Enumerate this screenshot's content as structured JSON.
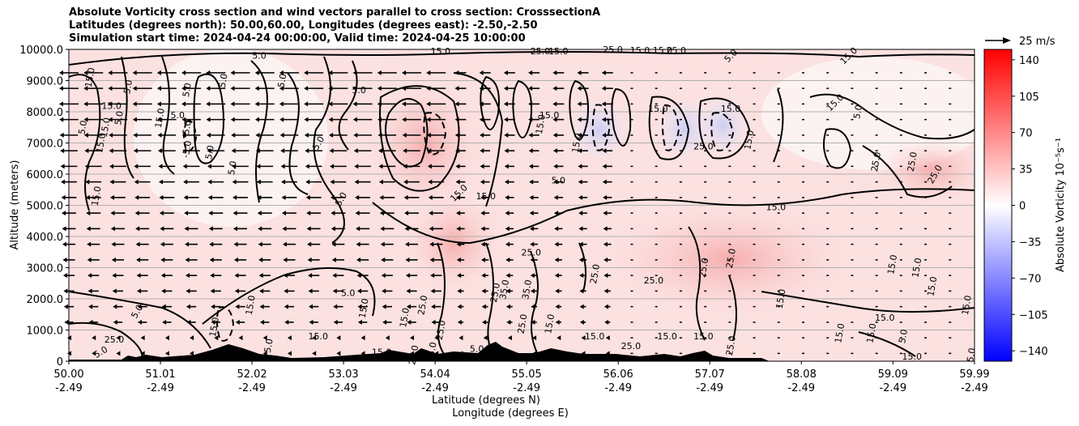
{
  "chart_data": {
    "type": "heatmap",
    "title": [
      "Absolute Vorticity cross section and wind vectors parallel to cross section: CrosssectionA",
      "Latitudes (degrees north): 50.00,60.00, Longitudes (degrees east): -2.50,-2.50",
      "Simulation start time: 2024-04-24 00:00:00, Valid time: 2024-04-25 10:00:00"
    ],
    "xlabel": "Latitude (degrees N)",
    "xlabel2": "Longitude (degrees E)",
    "ylabel": "Altitude (meters)",
    "xlim": [
      50.0,
      59.99
    ],
    "ylim": [
      0,
      10000
    ],
    "x_ticks": [
      50.0,
      51.01,
      52.02,
      53.03,
      54.04,
      55.05,
      56.06,
      57.07,
      58.08,
      59.09,
      59.99
    ],
    "x_tick_labels": [
      "50.00",
      "51.01",
      "52.02",
      "53.03",
      "54.04",
      "55.05",
      "56.06",
      "57.07",
      "58.08",
      "59.09",
      "59.99"
    ],
    "x_tick_labels2": [
      "-2.49",
      "-2.49",
      "-2.49",
      "-2.49",
      "-2.49",
      "-2.49",
      "-2.49",
      "-2.49",
      "-2.49",
      "-2.49",
      "-2.49"
    ],
    "y_ticks": [
      0,
      1000,
      2000,
      3000,
      4000,
      5000,
      6000,
      7000,
      8000,
      9000,
      10000
    ],
    "y_tick_labels": [
      "0",
      "1000.0",
      "2000.0",
      "3000.0",
      "4000.0",
      "5000.0",
      "6000.0",
      "7000.0",
      "8000.0",
      "9000.0",
      "10000.0"
    ],
    "grid": "horizontal",
    "colorbar": {
      "label": "Absolute Vorticity 10⁻⁵s⁻¹",
      "range": [
        -150,
        150
      ],
      "ticks": [
        140,
        105,
        70,
        35,
        0,
        -35,
        -70,
        -105,
        -140
      ],
      "tick_labels": [
        "140",
        "105",
        "70",
        "35",
        "0",
        "−35",
        "−70",
        "−105",
        "−140"
      ],
      "colormap": "bwr"
    },
    "quiver_key": {
      "label": "25 m/s",
      "value": 25
    },
    "contour_labels": [
      {
        "text": "5.0",
        "lat": 52.1,
        "alt": 9800,
        "rot": 0
      },
      {
        "text": "15.0",
        "lat": 54.1,
        "alt": 9950,
        "rot": 0
      },
      {
        "text": "25.0",
        "lat": 55.2,
        "alt": 9950,
        "rot": 0
      },
      {
        "text": "15.0",
        "lat": 55.4,
        "alt": 9950,
        "rot": 0
      },
      {
        "text": "25.0",
        "lat": 56.0,
        "alt": 10000,
        "rot": 0
      },
      {
        "text": "15.0",
        "lat": 56.3,
        "alt": 9970,
        "rot": 0
      },
      {
        "text": "15.0",
        "lat": 56.55,
        "alt": 9970,
        "rot": 0
      },
      {
        "text": "25.0",
        "lat": 56.7,
        "alt": 9970,
        "rot": 0
      },
      {
        "text": "5.0",
        "lat": 57.3,
        "alt": 9800,
        "rot": -45
      },
      {
        "text": "15.0",
        "lat": 58.6,
        "alt": 9800,
        "rot": -45
      },
      {
        "text": "15.0",
        "lat": 50.23,
        "alt": 9100,
        "rot": -80
      },
      {
        "text": "5.0",
        "lat": 50.65,
        "alt": 8800,
        "rot": -80
      },
      {
        "text": "5.0",
        "lat": 51.3,
        "alt": 8700,
        "rot": -80
      },
      {
        "text": "5.0",
        "lat": 51.7,
        "alt": 9000,
        "rot": -80
      },
      {
        "text": "5.0",
        "lat": 52.35,
        "alt": 9000,
        "rot": -80
      },
      {
        "text": "5.0",
        "lat": 53.2,
        "alt": 8700,
        "rot": 0
      },
      {
        "text": "15.0",
        "lat": 50.47,
        "alt": 8200,
        "rot": 0
      },
      {
        "text": "5.0",
        "lat": 50.15,
        "alt": 7500,
        "rot": -80
      },
      {
        "text": "15.0",
        "lat": 50.4,
        "alt": 7500,
        "rot": -80
      },
      {
        "text": "5.0",
        "lat": 50.55,
        "alt": 7800,
        "rot": -80
      },
      {
        "text": "5.0",
        "lat": 51.2,
        "alt": 7900,
        "rot": 0
      },
      {
        "text": "15.0",
        "lat": 51.0,
        "alt": 7800,
        "rot": -80
      },
      {
        "text": "5.0",
        "lat": 51.3,
        "alt": 7500,
        "rot": -80
      },
      {
        "text": "-5.0",
        "lat": 51.3,
        "alt": 6800,
        "rot": -80
      },
      {
        "text": "5.0",
        "lat": 51.55,
        "alt": 6700,
        "rot": -80
      },
      {
        "text": "5.0",
        "lat": 51.8,
        "alt": 6200,
        "rot": -80
      },
      {
        "text": "15.0",
        "lat": 50.35,
        "alt": 7000,
        "rot": -80
      },
      {
        "text": "5.0",
        "lat": 52.75,
        "alt": 7000,
        "rot": -60
      },
      {
        "text": "15.0",
        "lat": 50.3,
        "alt": 5300,
        "rot": -80
      },
      {
        "text": "5.0",
        "lat": 53.0,
        "alt": 5200,
        "rot": -60
      },
      {
        "text": "15.0",
        "lat": 54.3,
        "alt": 5400,
        "rot": -45
      },
      {
        "text": "15.0",
        "lat": 54.6,
        "alt": 5300,
        "rot": 0
      },
      {
        "text": "5.0",
        "lat": 55.4,
        "alt": 5800,
        "rot": 0
      },
      {
        "text": "15.0",
        "lat": 55.3,
        "alt": 7900,
        "rot": 0
      },
      {
        "text": "15.0",
        "lat": 56.5,
        "alt": 8100,
        "rot": 0
      },
      {
        "text": "15.0",
        "lat": 57.3,
        "alt": 8100,
        "rot": 0
      },
      {
        "text": "25.0",
        "lat": 57.0,
        "alt": 6900,
        "rot": 0
      },
      {
        "text": "15.0",
        "lat": 57.5,
        "alt": 7100,
        "rot": -80
      },
      {
        "text": "15.0",
        "lat": 58.45,
        "alt": 8300,
        "rot": -45
      },
      {
        "text": "5.0",
        "lat": 58.7,
        "alt": 8000,
        "rot": -80
      },
      {
        "text": "25.0",
        "lat": 58.9,
        "alt": 6400,
        "rot": -80
      },
      {
        "text": "25.0",
        "lat": 59.3,
        "alt": 6400,
        "rot": -80
      },
      {
        "text": "25.0",
        "lat": 59.55,
        "alt": 6000,
        "rot": -60
      },
      {
        "text": "15.0",
        "lat": 57.8,
        "alt": 4950,
        "rot": 0
      },
      {
        "text": "15.0",
        "lat": 55.2,
        "alt": 7600,
        "rot": -80
      },
      {
        "text": "15.0",
        "lat": 55.6,
        "alt": 7000,
        "rot": -80
      },
      {
        "text": "25.0",
        "lat": 55.1,
        "alt": 3500,
        "rot": 0
      },
      {
        "text": "25.0",
        "lat": 55.8,
        "alt": 2800,
        "rot": -80
      },
      {
        "text": "25.0",
        "lat": 57.3,
        "alt": 3300,
        "rot": -80
      },
      {
        "text": "25.0",
        "lat": 57.0,
        "alt": 3000,
        "rot": -80
      },
      {
        "text": "25.0",
        "lat": 56.45,
        "alt": 2600,
        "rot": 0
      },
      {
        "text": "15.0",
        "lat": 59.08,
        "alt": 3100,
        "rot": -80
      },
      {
        "text": "15.0",
        "lat": 59.35,
        "alt": 3000,
        "rot": -80
      },
      {
        "text": "15.0",
        "lat": 59.52,
        "alt": 2400,
        "rot": -80
      },
      {
        "text": "15.0",
        "lat": 59.9,
        "alt": 1800,
        "rot": -80
      },
      {
        "text": "15.0",
        "lat": 57.85,
        "alt": 2000,
        "rot": -80
      },
      {
        "text": "15.0",
        "lat": 59.0,
        "alt": 1400,
        "rot": 0
      },
      {
        "text": "15.0",
        "lat": 58.85,
        "alt": 900,
        "rot": -80
      },
      {
        "text": "15.0",
        "lat": 58.5,
        "alt": 900,
        "rot": -80
      },
      {
        "text": "5.0",
        "lat": 59.2,
        "alt": 800,
        "rot": -80
      },
      {
        "text": "15.0",
        "lat": 59.3,
        "alt": 150,
        "rot": 0
      },
      {
        "text": "5.0",
        "lat": 59.95,
        "alt": 200,
        "rot": -80
      },
      {
        "text": "25.0",
        "lat": 57.3,
        "alt": 500,
        "rot": -80
      },
      {
        "text": "5.0",
        "lat": 53.08,
        "alt": 2200,
        "rot": 0
      },
      {
        "text": "5.0",
        "lat": 50.75,
        "alt": 1600,
        "rot": -60
      },
      {
        "text": "25.0",
        "lat": 50.5,
        "alt": 700,
        "rot": 0
      },
      {
        "text": "5.0",
        "lat": 50.35,
        "alt": 300,
        "rot": -30
      },
      {
        "text": "15.0",
        "lat": 51.6,
        "alt": 1100,
        "rot": -80
      },
      {
        "text": "15.0",
        "lat": 52.0,
        "alt": 1800,
        "rot": -80
      },
      {
        "text": "15.0",
        "lat": 53.25,
        "alt": 1700,
        "rot": -80
      },
      {
        "text": "15.0",
        "lat": 53.7,
        "alt": 1400,
        "rot": -80
      },
      {
        "text": "25.0",
        "lat": 53.9,
        "alt": 1800,
        "rot": -80
      },
      {
        "text": "25.0",
        "lat": 54.1,
        "alt": 1000,
        "rot": -80
      },
      {
        "text": "15.0",
        "lat": 54.0,
        "alt": 300,
        "rot": -80
      },
      {
        "text": "5.0",
        "lat": 54.5,
        "alt": 400,
        "rot": 0
      },
      {
        "text": "25.0",
        "lat": 55.0,
        "alt": 1200,
        "rot": -80
      },
      {
        "text": "25.0",
        "lat": 54.7,
        "alt": 2200,
        "rot": -80
      },
      {
        "text": "15.0",
        "lat": 55.3,
        "alt": 1200,
        "rot": -80
      },
      {
        "text": "15.0",
        "lat": 55.8,
        "alt": 800,
        "rot": 0
      },
      {
        "text": "25.0",
        "lat": 56.2,
        "alt": 500,
        "rot": 0
      },
      {
        "text": "15.0",
        "lat": 56.6,
        "alt": 800,
        "rot": 0
      },
      {
        "text": "15.0",
        "lat": 57.0,
        "alt": 800,
        "rot": 0
      },
      {
        "text": "35.0",
        "lat": 54.8,
        "alt": 2300,
        "rot": -80
      },
      {
        "text": "35.0",
        "lat": 55.05,
        "alt": 2300,
        "rot": -80
      },
      {
        "text": "15.0",
        "lat": 53.45,
        "alt": 300,
        "rot": 0
      },
      {
        "text": "15.0",
        "lat": 52.75,
        "alt": 800,
        "rot": 0
      },
      {
        "text": "5.0",
        "lat": 52.2,
        "alt": 500,
        "rot": -80
      },
      {
        "text": "25.0",
        "lat": 53.8,
        "alt": 200,
        "rot": -80
      }
    ]
  }
}
